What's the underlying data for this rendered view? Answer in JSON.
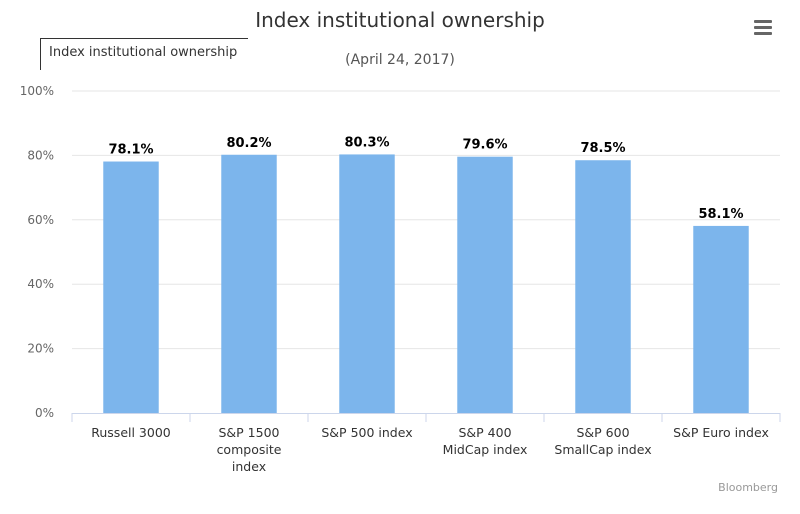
{
  "chart_data": {
    "type": "bar",
    "title": "Index institutional ownership",
    "subtitle": "(April 24, 2017)",
    "legend": [
      "Index institutional ownership"
    ],
    "categories": [
      [
        "Russell 3000"
      ],
      [
        "S&P 1500",
        "composite",
        "index"
      ],
      [
        "S&P 500 index"
      ],
      [
        "S&P 400",
        "MidCap index"
      ],
      [
        "S&P 600",
        "SmallCap index"
      ],
      [
        "S&P Euro index"
      ]
    ],
    "series": [
      {
        "name": "Index institutional ownership",
        "values": [
          78.1,
          80.2,
          80.3,
          79.6,
          78.5,
          58.1
        ]
      }
    ],
    "data_labels": [
      "78.1%",
      "80.2%",
      "80.3%",
      "79.6%",
      "78.5%",
      "58.1%"
    ],
    "ylim": [
      0,
      100
    ],
    "yticks": [
      "0%",
      "20%",
      "40%",
      "60%",
      "80%",
      "100%"
    ],
    "grid": true,
    "legend_placement": "top-left",
    "bar_color": "#7cb5ec",
    "credit": "Bloomberg"
  },
  "menu": {
    "icon": "hamburger-menu-icon"
  }
}
